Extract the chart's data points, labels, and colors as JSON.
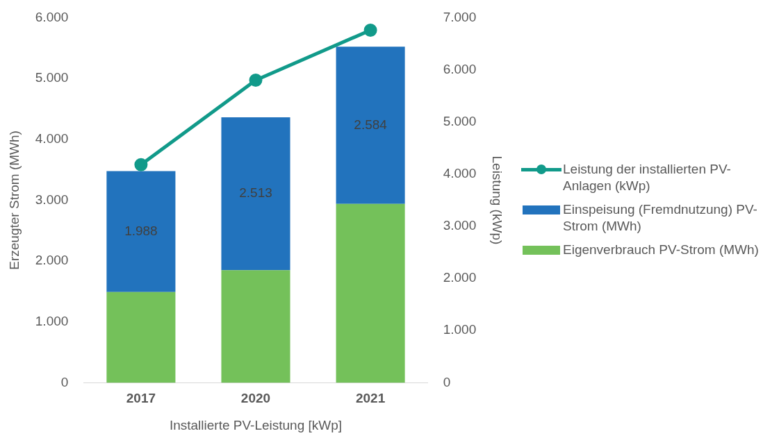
{
  "chart_data": {
    "type": "bar",
    "stacked": true,
    "xlabel": "Installierte PV-Leistung [kWp]",
    "ylabel": "Erzeugter Strom (MWh)",
    "y2label": "Leistung (kWp)",
    "categories": [
      "2017",
      "2020",
      "2021"
    ],
    "series": [
      {
        "name": "Eigenverbrauch PV-Strom (MWh)",
        "color": "#74c15a",
        "values": [
          1490,
          1850,
          2940
        ]
      },
      {
        "name": "Einspeisung (Fremdnutzung) PV-Strom (MWh)",
        "color": "#2273bd",
        "values": [
          1988,
          2513,
          2584
        ],
        "value_labels": [
          "1.988",
          "2.513",
          "2.584"
        ]
      },
      {
        "name": "Leistung der installierten PV-Anlagen (kWp)",
        "type": "line",
        "axis": "y2",
        "color": "#119a8a",
        "values": [
          4180,
          5800,
          6760
        ]
      }
    ],
    "ylim": [
      0,
      6000
    ],
    "yticks": [
      {
        "value": 0,
        "label": "0"
      },
      {
        "value": 1000,
        "label": "1.000"
      },
      {
        "value": 2000,
        "label": "2.000"
      },
      {
        "value": 3000,
        "label": "3.000"
      },
      {
        "value": 4000,
        "label": "4.000"
      },
      {
        "value": 5000,
        "label": "5.000"
      },
      {
        "value": 6000,
        "label": "6.000"
      }
    ],
    "y2lim": [
      0,
      7000
    ],
    "y2ticks": [
      {
        "value": 0,
        "label": "0"
      },
      {
        "value": 1000,
        "label": "1.000"
      },
      {
        "value": 2000,
        "label": "2.000"
      },
      {
        "value": 3000,
        "label": "3.000"
      },
      {
        "value": 4000,
        "label": "4.000"
      },
      {
        "value": 5000,
        "label": "5.000"
      },
      {
        "value": 6000,
        "label": "6.000"
      },
      {
        "value": 7000,
        "label": "7.000"
      }
    ],
    "grid": false,
    "legend": "right",
    "marker": "circle",
    "line_style": "solid"
  }
}
